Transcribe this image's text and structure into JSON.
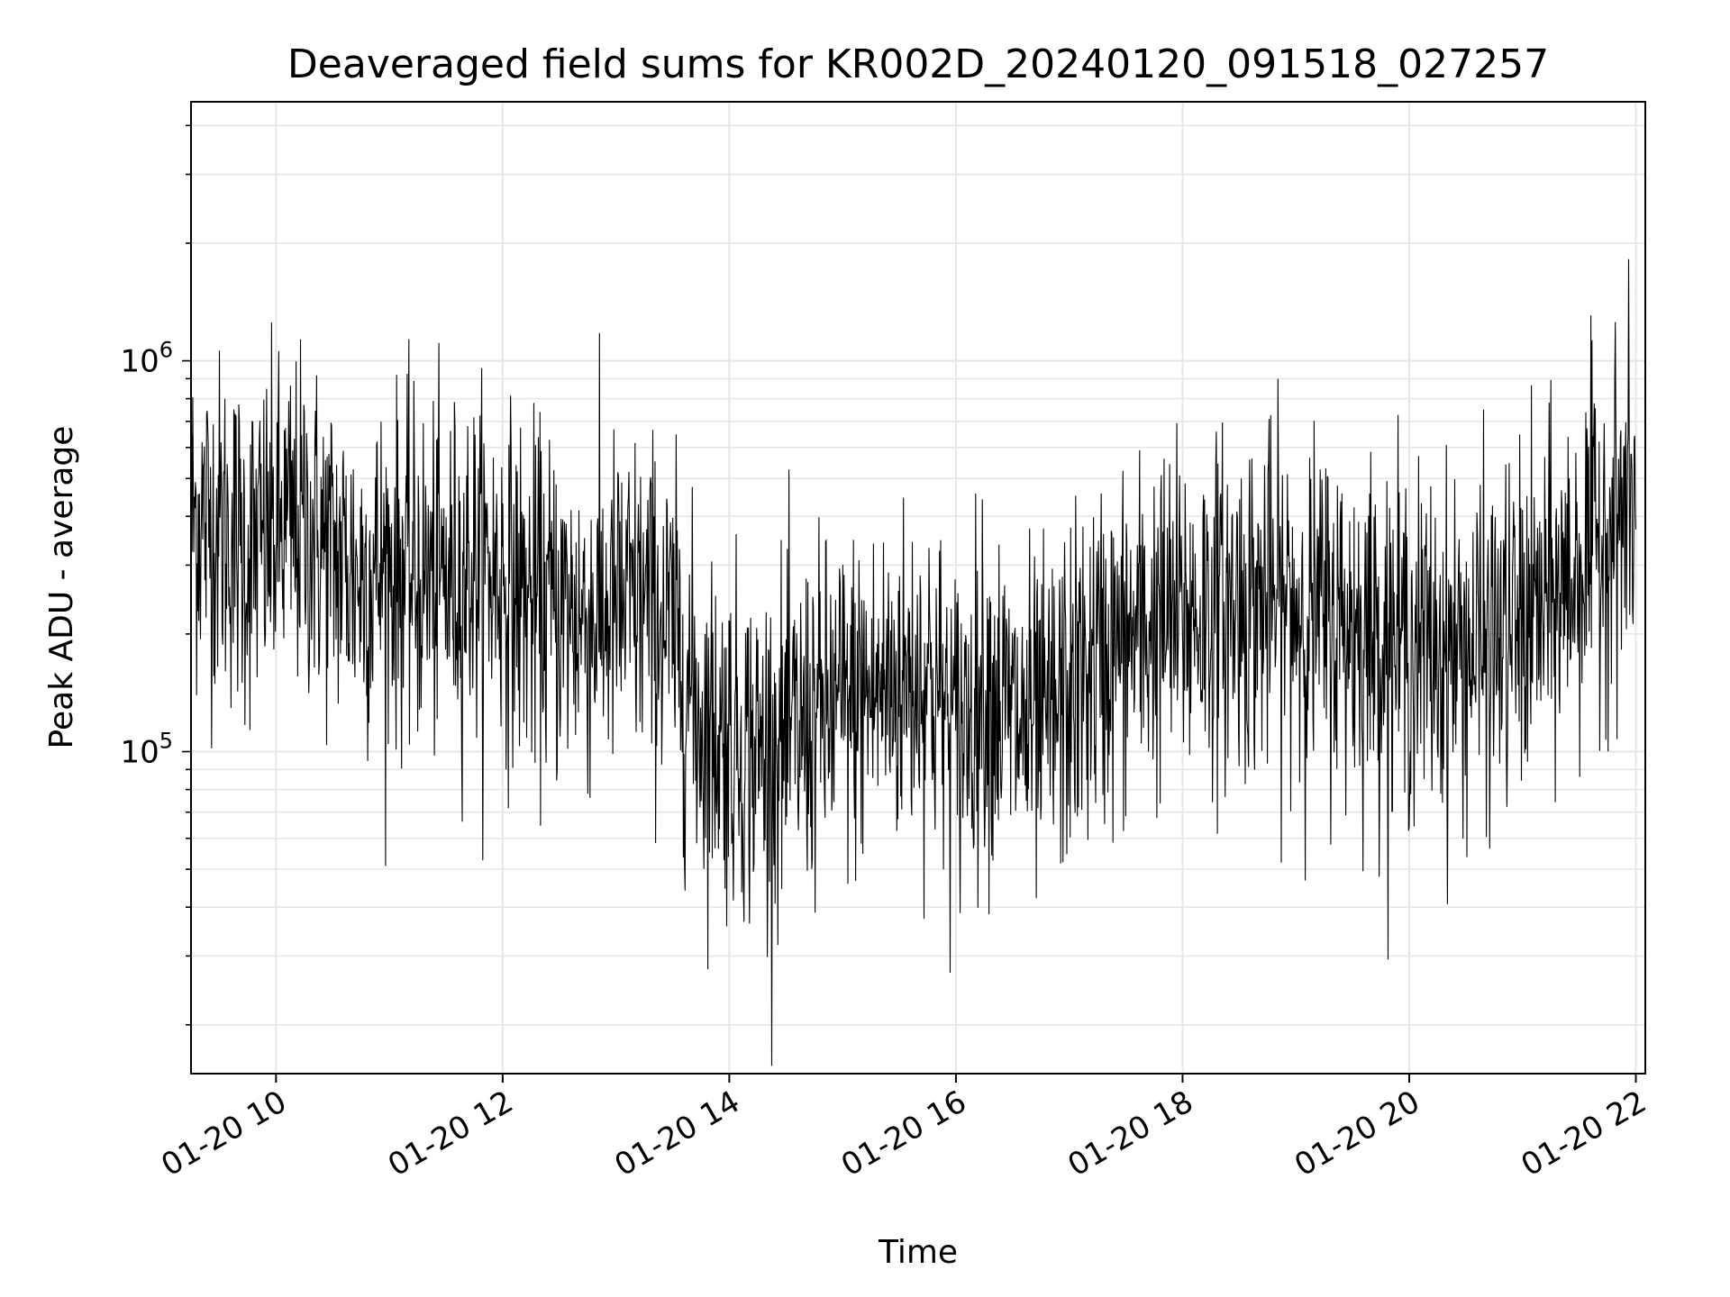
{
  "chart_data": {
    "type": "line",
    "title": "Deaveraged field sums for KR002D_20240120_091518_027257",
    "xlabel": "Time",
    "ylabel": "Peak ADU - average",
    "yscale": "log",
    "grid": true,
    "line_color": "#000000",
    "grid_color": "#e6e6e6",
    "x_tick_labels": [
      "01-20 10",
      "01-20 12",
      "01-20 14",
      "01-20 16",
      "01-20 18",
      "01-20 20",
      "01-20 22"
    ],
    "y_tick_labels": [
      {
        "value": 100000,
        "base": "10",
        "exp": "5"
      },
      {
        "value": 1000000,
        "base": "10",
        "exp": "6"
      }
    ],
    "xlim": [
      "2024-01-20 09:15",
      "2024-01-20 22:05"
    ],
    "ylim": [
      15000,
      4600000
    ],
    "series": [
      {
        "x": [
          "2024-01-20 09:15",
          "2024-01-20 09:30",
          "2024-01-20 09:45",
          "2024-01-20 10:00",
          "2024-01-20 10:15",
          "2024-01-20 10:30",
          "2024-01-20 10:45",
          "2024-01-20 11:00",
          "2024-01-20 11:15",
          "2024-01-20 11:30",
          "2024-01-20 11:45",
          "2024-01-20 12:00",
          "2024-01-20 12:15",
          "2024-01-20 12:30",
          "2024-01-20 12:45",
          "2024-01-20 13:00",
          "2024-01-20 13:15",
          "2024-01-20 13:30",
          "2024-01-20 13:45",
          "2024-01-20 14:00",
          "2024-01-20 14:15",
          "2024-01-20 14:30",
          "2024-01-20 14:45",
          "2024-01-20 15:00",
          "2024-01-20 15:15",
          "2024-01-20 15:30",
          "2024-01-20 15:45",
          "2024-01-20 16:00",
          "2024-01-20 16:15",
          "2024-01-20 16:30",
          "2024-01-20 16:45",
          "2024-01-20 17:00",
          "2024-01-20 17:15",
          "2024-01-20 17:30",
          "2024-01-20 17:45",
          "2024-01-20 18:00",
          "2024-01-20 18:15",
          "2024-01-20 18:30",
          "2024-01-20 18:45",
          "2024-01-20 19:00",
          "2024-01-20 19:15",
          "2024-01-20 19:30",
          "2024-01-20 19:45",
          "2024-01-20 20:00",
          "2024-01-20 20:15",
          "2024-01-20 20:30",
          "2024-01-20 20:45",
          "2024-01-20 21:00",
          "2024-01-20 21:15",
          "2024-01-20 21:30",
          "2024-01-20 21:45",
          "2024-01-20 22:00"
        ],
        "y": [
          400000,
          380000,
          320000,
          360000,
          380000,
          320000,
          280000,
          300000,
          280000,
          270000,
          300000,
          280000,
          240000,
          230000,
          220000,
          230000,
          240000,
          200000,
          120000,
          110000,
          100000,
          105000,
          120000,
          130000,
          140000,
          150000,
          160000,
          110000,
          150000,
          120000,
          110000,
          140000,
          170000,
          190000,
          210000,
          220000,
          230000,
          240000,
          240000,
          235000,
          220000,
          210000,
          200000,
          190000,
          180000,
          180000,
          190000,
          210000,
          240000,
          300000,
          380000,
          430000
        ]
      }
    ]
  }
}
